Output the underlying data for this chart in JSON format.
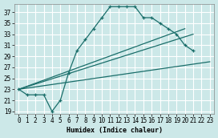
{
  "xlabel": "Humidex (Indice chaleur)",
  "bg_color": "#cce8e8",
  "grid_color": "#ffffff",
  "line_color": "#1a6e6a",
  "xlim": [
    -0.5,
    23.5
  ],
  "ylim": [
    18.5,
    38.5
  ],
  "yticks": [
    19,
    21,
    23,
    25,
    27,
    29,
    31,
    33,
    35,
    37
  ],
  "xticks": [
    0,
    1,
    2,
    3,
    4,
    5,
    6,
    7,
    8,
    9,
    10,
    11,
    12,
    13,
    14,
    15,
    16,
    17,
    18,
    19,
    20,
    21,
    22,
    23
  ],
  "line1_x": [
    0,
    1,
    2,
    3,
    4,
    5,
    6,
    7,
    8,
    9,
    10,
    11,
    12,
    13,
    14,
    15,
    16,
    17,
    18,
    19,
    20,
    21
  ],
  "line1_y": [
    23,
    22,
    22,
    22,
    19,
    21,
    26,
    30,
    32,
    34,
    36,
    38,
    38,
    38,
    38,
    36,
    36,
    35,
    34,
    33,
    31,
    30
  ],
  "line2_x": [
    0,
    23
  ],
  "line2_y": [
    23,
    28
  ],
  "line3_x": [
    0,
    21
  ],
  "line3_y": [
    23,
    33
  ],
  "line4_x": [
    0,
    20
  ],
  "line4_y": [
    23,
    34
  ]
}
